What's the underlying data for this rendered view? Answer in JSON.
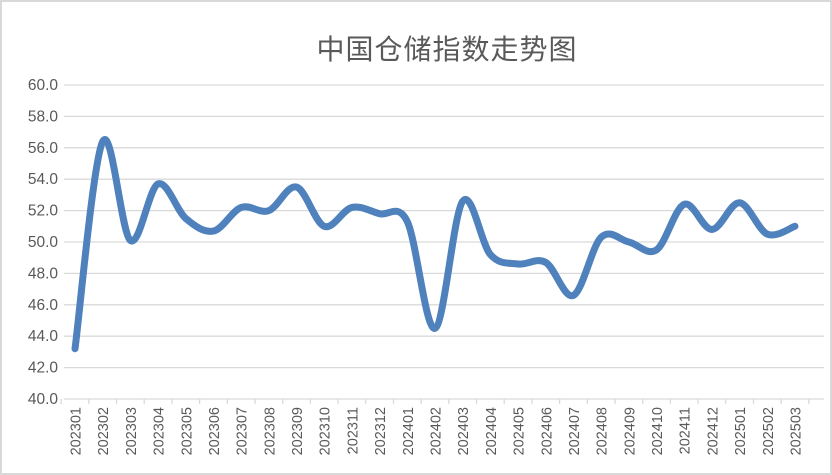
{
  "chart_data": {
    "type": "line",
    "title": "中国仓储指数走势图",
    "categories": [
      "202301",
      "202302",
      "202303",
      "202304",
      "202305",
      "202306",
      "202307",
      "202308",
      "202309",
      "202310",
      "202311",
      "202312",
      "202401",
      "202402",
      "202403",
      "202404",
      "202405",
      "202406",
      "202407",
      "202408",
      "202409",
      "202410",
      "202411",
      "202412",
      "202501",
      "202502",
      "202503"
    ],
    "values": [
      43.2,
      56.4,
      50.1,
      53.7,
      51.5,
      50.7,
      52.2,
      52.0,
      53.5,
      51.0,
      52.2,
      51.8,
      51.3,
      44.5,
      52.6,
      49.2,
      48.6,
      48.7,
      46.6,
      50.3,
      50.0,
      49.5,
      52.4,
      50.8,
      52.5,
      50.5,
      51.0
    ],
    "xlabel": "",
    "ylabel": "",
    "ylim": [
      40.0,
      60.0
    ],
    "y_tick_step": 2.0,
    "y_tick_labels": [
      "40.0",
      "42.0",
      "44.0",
      "46.0",
      "48.0",
      "50.0",
      "52.0",
      "54.0",
      "56.0",
      "58.0",
      "60.0"
    ],
    "grid": true,
    "smooth": true,
    "legend": "none",
    "colors": {
      "line": "#4F81BD",
      "gridline": "#D9D9D9",
      "axis": "#D9D9D9",
      "text": "#595959",
      "background": "#FFFFFF"
    }
  }
}
